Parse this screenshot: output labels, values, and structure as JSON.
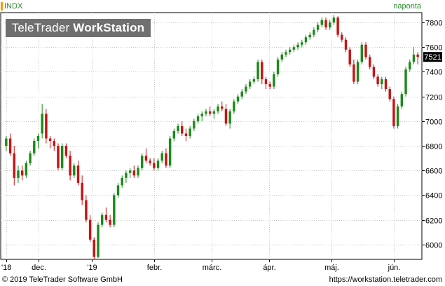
{
  "header": {
    "symbol": "INDX",
    "period": "naponta",
    "brand_plain": "TeleTrader ",
    "brand_bold": "WorkStation"
  },
  "footer": {
    "copyright": "© 2019 TeleTrader Software GmbH",
    "url": "https://workstation.teletrader.com"
  },
  "colors": {
    "up": "#1a8a1a",
    "down": "#cc1111",
    "grid": "#c8c8c8",
    "last_badge": "#000000"
  },
  "chart_data": {
    "type": "candlestick",
    "ylim": [
      5880,
      7880
    ],
    "yticks": [
      6000,
      6200,
      6400,
      6600,
      6800,
      7000,
      7200,
      7400,
      7600,
      7800
    ],
    "last_value": "7521",
    "xticks": [
      "'18",
      "dec.",
      "'19",
      "febr.",
      "márc.",
      "ápr.",
      "máj.",
      "jún."
    ],
    "grid": true,
    "candles": [
      [
        6800,
        6880,
        6760,
        6860
      ],
      [
        6860,
        6900,
        6720,
        6740
      ],
      [
        6740,
        6800,
        6480,
        6540
      ],
      [
        6540,
        6640,
        6500,
        6600
      ],
      [
        6600,
        6640,
        6520,
        6560
      ],
      [
        6560,
        6680,
        6540,
        6660
      ],
      [
        6660,
        6760,
        6640,
        6740
      ],
      [
        6740,
        6860,
        6720,
        6840
      ],
      [
        6840,
        6900,
        6780,
        6880
      ],
      [
        6900,
        7140,
        6860,
        7060
      ],
      [
        7060,
        7100,
        6820,
        6860
      ],
      [
        6860,
        6880,
        6780,
        6840
      ],
      [
        6840,
        6860,
        6760,
        6800
      ],
      [
        6800,
        6820,
        6600,
        6620
      ],
      [
        6620,
        6820,
        6600,
        6800
      ],
      [
        6800,
        6820,
        6700,
        6720
      ],
      [
        6720,
        6760,
        6520,
        6560
      ],
      [
        6560,
        6660,
        6540,
        6640
      ],
      [
        6640,
        6680,
        6480,
        6500
      ],
      [
        6500,
        6560,
        6320,
        6360
      ],
      [
        6360,
        6400,
        6180,
        6200
      ],
      [
        6200,
        6240,
        6020,
        6040
      ],
      [
        6040,
        6060,
        5880,
        5900
      ],
      [
        5900,
        6180,
        5890,
        6160
      ],
      [
        6160,
        6260,
        6140,
        6240
      ],
      [
        6240,
        6300,
        6180,
        6200
      ],
      [
        6200,
        6240,
        6140,
        6160
      ],
      [
        6160,
        6420,
        6140,
        6400
      ],
      [
        6400,
        6500,
        6380,
        6480
      ],
      [
        6480,
        6560,
        6460,
        6540
      ],
      [
        6540,
        6600,
        6500,
        6580
      ],
      [
        6580,
        6620,
        6540,
        6600
      ],
      [
        6600,
        6640,
        6540,
        6560
      ],
      [
        6560,
        6640,
        6540,
        6620
      ],
      [
        6620,
        6740,
        6600,
        6720
      ],
      [
        6720,
        6780,
        6660,
        6680
      ],
      [
        6680,
        6700,
        6640,
        6660
      ],
      [
        6660,
        6700,
        6600,
        6620
      ],
      [
        6620,
        6700,
        6600,
        6680
      ],
      [
        6680,
        6760,
        6660,
        6740
      ],
      [
        6740,
        6780,
        6620,
        6640
      ],
      [
        6640,
        6880,
        6620,
        6860
      ],
      [
        6860,
        6940,
        6840,
        6920
      ],
      [
        6920,
        6980,
        6900,
        6960
      ],
      [
        6960,
        7000,
        6880,
        6900
      ],
      [
        6900,
        6940,
        6840,
        6880
      ],
      [
        6880,
        6960,
        6860,
        6940
      ],
      [
        6940,
        7020,
        6920,
        7000
      ],
      [
        7000,
        7060,
        6980,
        7040
      ],
      [
        7040,
        7080,
        7000,
        7060
      ],
      [
        7060,
        7100,
        7040,
        7080
      ],
      [
        7080,
        7120,
        7040,
        7060
      ],
      [
        7060,
        7100,
        7020,
        7080
      ],
      [
        7080,
        7140,
        7060,
        7120
      ],
      [
        7120,
        7160,
        7080,
        7100
      ],
      [
        7100,
        7140,
        6960,
        6980
      ],
      [
        6980,
        7100,
        6940,
        7080
      ],
      [
        7080,
        7180,
        7060,
        7160
      ],
      [
        7160,
        7220,
        7140,
        7200
      ],
      [
        7200,
        7260,
        7180,
        7240
      ],
      [
        7240,
        7300,
        7220,
        7280
      ],
      [
        7280,
        7340,
        7260,
        7320
      ],
      [
        7320,
        7360,
        7300,
        7340
      ],
      [
        7340,
        7500,
        7320,
        7480
      ],
      [
        7480,
        7500,
        7300,
        7340
      ],
      [
        7340,
        7360,
        7260,
        7300
      ],
      [
        7300,
        7320,
        7260,
        7280
      ],
      [
        7280,
        7400,
        7260,
        7380
      ],
      [
        7380,
        7520,
        7360,
        7500
      ],
      [
        7500,
        7560,
        7480,
        7540
      ],
      [
        7540,
        7580,
        7520,
        7560
      ],
      [
        7560,
        7600,
        7540,
        7580
      ],
      [
        7580,
        7620,
        7560,
        7600
      ],
      [
        7600,
        7640,
        7580,
        7620
      ],
      [
        7620,
        7660,
        7600,
        7640
      ],
      [
        7640,
        7700,
        7620,
        7680
      ],
      [
        7680,
        7720,
        7660,
        7700
      ],
      [
        7700,
        7760,
        7680,
        7740
      ],
      [
        7740,
        7800,
        7720,
        7780
      ],
      [
        7780,
        7840,
        7760,
        7820
      ],
      [
        7820,
        7840,
        7740,
        7760
      ],
      [
        7760,
        7820,
        7740,
        7800
      ],
      [
        7800,
        7860,
        7780,
        7840
      ],
      [
        7840,
        7850,
        7680,
        7700
      ],
      [
        7700,
        7720,
        7640,
        7660
      ],
      [
        7660,
        7680,
        7560,
        7580
      ],
      [
        7580,
        7600,
        7440,
        7460
      ],
      [
        7460,
        7500,
        7300,
        7320
      ],
      [
        7320,
        7500,
        7300,
        7480
      ],
      [
        7480,
        7640,
        7460,
        7620
      ],
      [
        7620,
        7640,
        7500,
        7520
      ],
      [
        7520,
        7540,
        7420,
        7440
      ],
      [
        7440,
        7460,
        7340,
        7360
      ],
      [
        7360,
        7380,
        7280,
        7300
      ],
      [
        7300,
        7360,
        7260,
        7340
      ],
      [
        7340,
        7360,
        7240,
        7260
      ],
      [
        7260,
        7280,
        7160,
        7180
      ],
      [
        7180,
        7200,
        6940,
        6960
      ],
      [
        6960,
        7140,
        6940,
        7120
      ],
      [
        7120,
        7240,
        7100,
        7220
      ],
      [
        7220,
        7440,
        7200,
        7420
      ],
      [
        7420,
        7500,
        7400,
        7480
      ],
      [
        7480,
        7600,
        7460,
        7540
      ],
      [
        7540,
        7560,
        7460,
        7521
      ]
    ]
  }
}
